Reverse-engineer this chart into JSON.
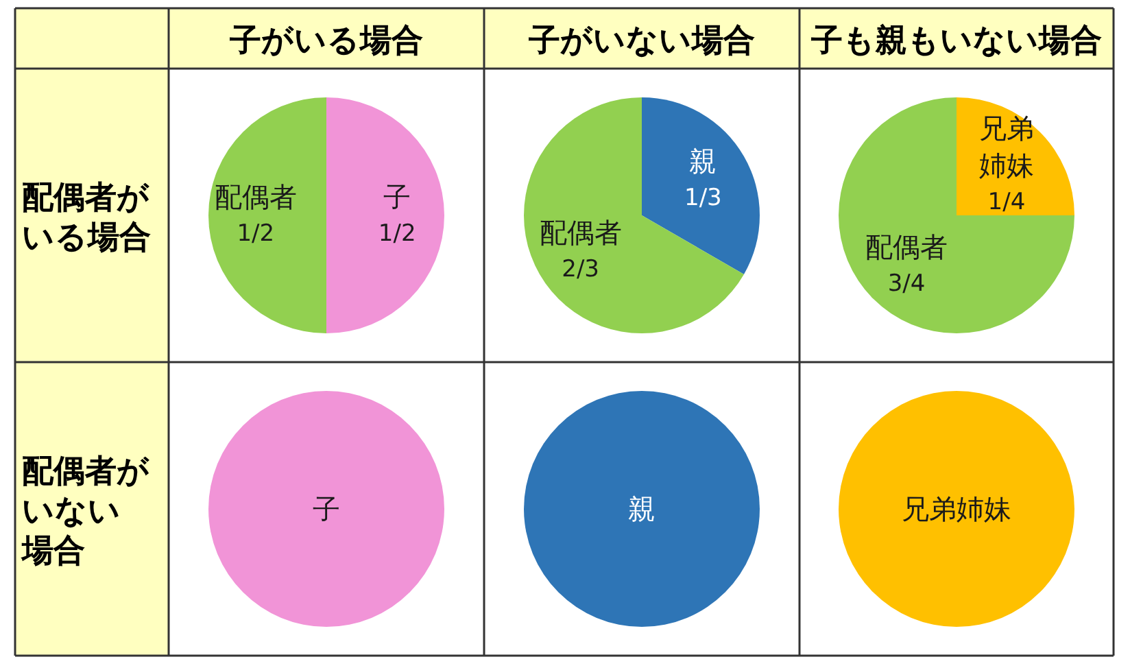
{
  "chart_data": [
    {
      "type": "pie",
      "title": "子がいる場合",
      "ylabel": "配偶者がいる場合",
      "categories": [
        "子",
        "配偶者"
      ],
      "values": [
        0.5,
        0.5
      ],
      "colors": [
        "#f194d7",
        "#92d050"
      ],
      "value_labels": [
        "1/2",
        "1/2"
      ]
    },
    {
      "type": "pie",
      "title": "子がいない場合",
      "categories": [
        "親",
        "配偶者"
      ],
      "values": [
        0.3333,
        0.6667
      ],
      "colors": [
        "#2e75b6",
        "#92d050"
      ],
      "value_labels": [
        "1/3",
        "2/3"
      ]
    },
    {
      "type": "pie",
      "title": "子も親もいない場合",
      "categories": [
        "兄弟姉妹",
        "配偶者"
      ],
      "values": [
        0.25,
        0.75
      ],
      "colors": [
        "#ffc000",
        "#92d050"
      ],
      "value_labels": [
        "1/4",
        "3/4"
      ]
    },
    {
      "type": "pie",
      "ylabel": "配偶者がいない場合",
      "categories": [
        "子"
      ],
      "values": [
        1
      ],
      "colors": [
        "#f194d7"
      ]
    },
    {
      "type": "pie",
      "categories": [
        "親"
      ],
      "values": [
        1
      ],
      "colors": [
        "#2e75b6"
      ]
    },
    {
      "type": "pie",
      "categories": [
        "兄弟姉妹"
      ],
      "values": [
        1
      ],
      "colors": [
        "#ffc000"
      ]
    }
  ]
}
